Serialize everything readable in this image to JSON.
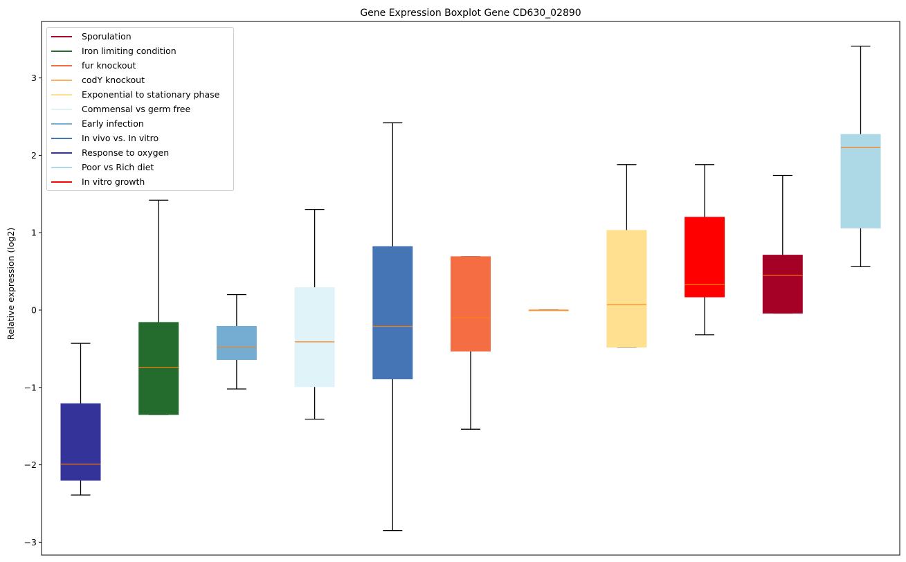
{
  "chart_data": {
    "type": "boxplot",
    "title": "Gene Expression Boxplot Gene CD630_02890",
    "xlabel": "",
    "ylabel": "Relative expression (log2)",
    "ylim": [
      -3.16,
      3.73
    ],
    "yticks": [
      -3,
      -2,
      -1,
      0,
      1,
      2,
      3
    ],
    "ytick_labels": [
      "−3",
      "−2",
      "−1",
      "0",
      "1",
      "2",
      "3"
    ],
    "grid": false,
    "legend_position": "top-left",
    "median_color": "#ff7f0e",
    "legend": [
      {
        "label": "Sporulation",
        "color": "#a50026"
      },
      {
        "label": "Iron limiting condition",
        "color": "#236c2e"
      },
      {
        "label": "fur knockout",
        "color": "#f46d43"
      },
      {
        "label": "codY knockout",
        "color": "#fdae61"
      },
      {
        "label": "Exponential to stationary phase",
        "color": "#fee090"
      },
      {
        "label": "Commensal vs germ free",
        "color": "#e0f3f8"
      },
      {
        "label": "Early infection",
        "color": "#74add1"
      },
      {
        "label": "In vivo vs. In vitro",
        "color": "#4575b4"
      },
      {
        "label": "Response to oxygen",
        "color": "#313695"
      },
      {
        "label": "Poor vs Rich diet",
        "color": "#add8e6"
      },
      {
        "label": "In vitro growth",
        "color": "#ff0000"
      }
    ],
    "boxes": [
      {
        "group": "Response to oxygen",
        "color": "#333399",
        "whislo": -2.39,
        "q1": -2.2,
        "med": -1.99,
        "q3": -1.21,
        "whishi": -0.43
      },
      {
        "group": "Iron limiting condition",
        "color": "#236c2e",
        "whislo": -1.35,
        "q1": -1.35,
        "med": -0.74,
        "q3": -0.16,
        "whishi": 1.42
      },
      {
        "group": "Early infection",
        "color": "#74add1",
        "whislo": -1.02,
        "q1": -0.64,
        "med": -0.48,
        "q3": -0.21,
        "whishi": 0.2
      },
      {
        "group": "Commensal vs germ free",
        "color": "#e0f3f8",
        "whislo": -1.41,
        "q1": -0.99,
        "med": -0.41,
        "q3": 0.29,
        "whishi": 1.3
      },
      {
        "group": "In vivo vs. In vitro",
        "color": "#4575b4",
        "whislo": -2.85,
        "q1": -0.89,
        "med": -0.21,
        "q3": 0.82,
        "whishi": 2.42
      },
      {
        "group": "fur knockout",
        "color": "#f46d43",
        "whislo": -1.54,
        "q1": -0.53,
        "med": -0.1,
        "q3": 0.69,
        "whishi": 0.69
      },
      {
        "group": "codY knockout",
        "color": "#fdae61",
        "whislo": 0.0,
        "q1": 0.0,
        "med": 0.0,
        "q3": 0.0,
        "whishi": 0.0
      },
      {
        "group": "Exponential to stationary phase",
        "color": "#fee090",
        "whislo": -0.48,
        "q1": -0.48,
        "med": 0.07,
        "q3": 1.03,
        "whishi": 1.88
      },
      {
        "group": "In vitro growth",
        "color": "#ff0000",
        "whislo": -0.32,
        "q1": 0.17,
        "med": 0.33,
        "q3": 1.2,
        "whishi": 1.88
      },
      {
        "group": "Sporulation",
        "color": "#a50026",
        "whislo": -0.04,
        "q1": -0.04,
        "med": 0.45,
        "q3": 0.71,
        "whishi": 1.74
      },
      {
        "group": "Poor vs Rich diet",
        "color": "#add8e6",
        "whislo": 0.56,
        "q1": 1.06,
        "med": 2.1,
        "q3": 2.27,
        "whishi": 3.41
      }
    ]
  }
}
